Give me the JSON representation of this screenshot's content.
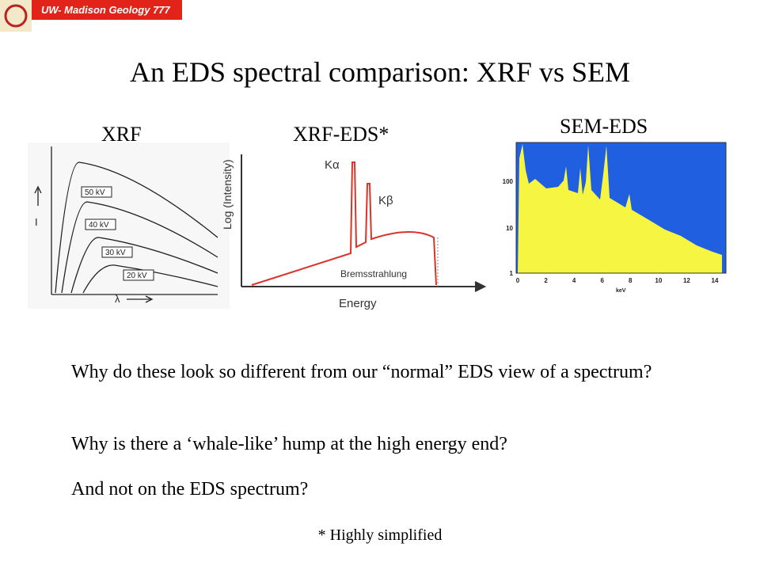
{
  "header": {
    "logo_text": "UW- Madison Geology 777"
  },
  "title": "An EDS spectral comparison: XRF vs SEM",
  "figures": [
    {
      "label": "XRF",
      "curve_labels": [
        "50 kV",
        "40 kV",
        "30 kV",
        "20 kV"
      ],
      "y_axis_label": "I",
      "x_axis_label": "λ"
    },
    {
      "label": "XRF-EDS*",
      "y_axis_label": "Log (Intensity)",
      "peak_labels": [
        "Kα",
        "Kβ"
      ],
      "continuum_label": "Bremsstrahlung",
      "x_axis_label": "Energy"
    },
    {
      "label": "SEM-EDS",
      "y_tick_labels": [
        100,
        10,
        1
      ],
      "x_tick_labels": [
        0,
        2,
        4,
        6,
        8,
        10,
        12,
        14
      ],
      "x_axis_label": "keV"
    }
  ],
  "questions": [
    "Why do these look so different from our “normal” EDS view of a spectrum?",
    "Why is there a ‘whale-like’ hump at the high energy end?",
    "And not on the EDS spectrum?"
  ],
  "footnote": "* Highly simplified"
}
